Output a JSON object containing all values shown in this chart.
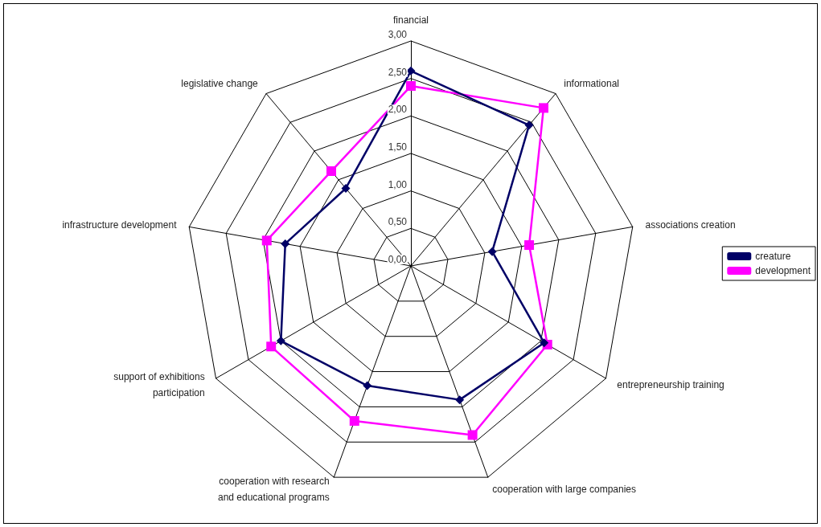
{
  "chart_data": {
    "type": "radar",
    "categories": [
      "financial",
      "informational",
      "associations creation",
      "entrepreneurship training",
      "cooperation with large companies",
      "cooperation with research and educational programs",
      "support of exhibitions participation",
      "infrastructure development",
      "legislative change"
    ],
    "series": [
      {
        "name": "creature",
        "color": "#000066",
        "marker": "diamond",
        "values": [
          2.6,
          2.45,
          1.1,
          2.05,
          1.9,
          1.7,
          2.0,
          1.7,
          1.35
        ]
      },
      {
        "name": "development",
        "color": "#ff00ff",
        "marker": "square",
        "values": [
          2.4,
          2.75,
          1.6,
          2.1,
          2.4,
          2.2,
          2.15,
          1.95,
          1.65
        ]
      }
    ],
    "ylim": [
      0,
      3
    ],
    "yticks": [
      {
        "value": 0,
        "label": "0,00"
      },
      {
        "value": 0.5,
        "label": "0,50"
      },
      {
        "value": 1,
        "label": "1,00"
      },
      {
        "value": 1.5,
        "label": "1,50"
      },
      {
        "value": 2,
        "label": "2,00"
      },
      {
        "value": 2.5,
        "label": "2,50"
      },
      {
        "value": 3,
        "label": "3,00"
      }
    ],
    "legend": "right"
  }
}
